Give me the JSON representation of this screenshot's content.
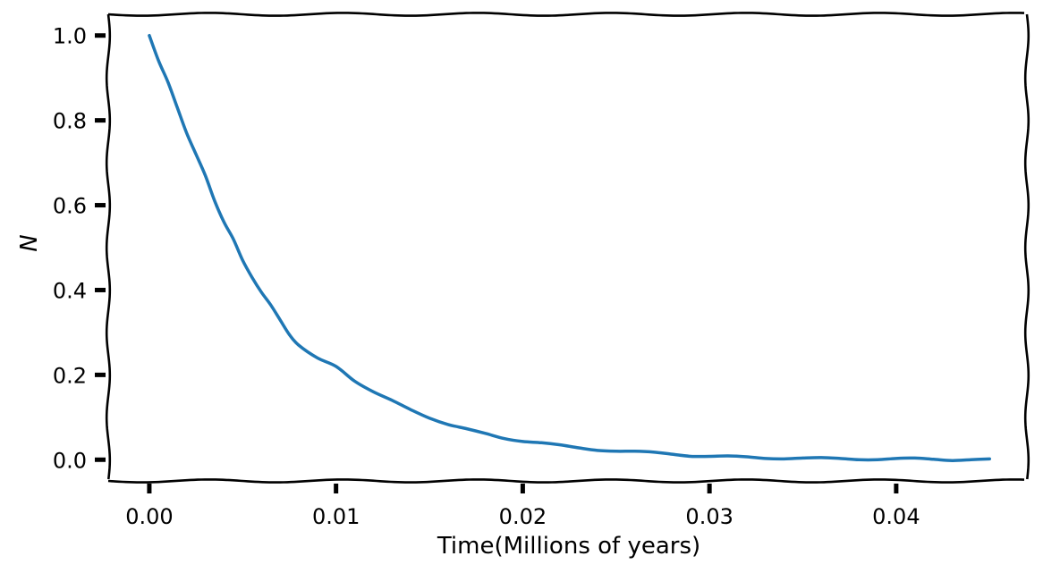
{
  "chart_data": {
    "type": "line",
    "title": "",
    "xlabel": "Time(Millions of years)",
    "ylabel": "N",
    "xlim": [
      -0.0022,
      0.047
    ],
    "ylim": [
      -0.05,
      1.05
    ],
    "xticks": [
      0.0,
      0.01,
      0.02,
      0.03,
      0.04
    ],
    "xtick_labels": [
      "0.00",
      "0.01",
      "0.02",
      "0.03",
      "0.04"
    ],
    "yticks": [
      0.0,
      0.2,
      0.4,
      0.6,
      0.8,
      1.0
    ],
    "ytick_labels": [
      "0.0",
      "0.2",
      "0.4",
      "0.6",
      "0.8",
      "1.0"
    ],
    "grid": false,
    "legend": "none",
    "style": "xkcd",
    "series": [
      {
        "color": "#1f77b4",
        "x": [
          0.0,
          0.0005,
          0.001,
          0.0015,
          0.002,
          0.0025,
          0.003,
          0.0035,
          0.004,
          0.0045,
          0.005,
          0.0055,
          0.006,
          0.0065,
          0.007,
          0.0075,
          0.008,
          0.009,
          0.01,
          0.011,
          0.012,
          0.013,
          0.014,
          0.015,
          0.016,
          0.017,
          0.018,
          0.019,
          0.02,
          0.021,
          0.022,
          0.023,
          0.024,
          0.025,
          0.026,
          0.027,
          0.028,
          0.029,
          0.03,
          0.031,
          0.032,
          0.033,
          0.034,
          0.035,
          0.036,
          0.037,
          0.038,
          0.039,
          0.04,
          0.041,
          0.042,
          0.043,
          0.044,
          0.045
        ],
        "y": [
          1.0,
          0.94,
          0.89,
          0.83,
          0.77,
          0.72,
          0.67,
          0.61,
          0.56,
          0.52,
          0.47,
          0.43,
          0.395,
          0.365,
          0.33,
          0.295,
          0.27,
          0.24,
          0.22,
          0.185,
          0.16,
          0.14,
          0.118,
          0.098,
          0.083,
          0.073,
          0.062,
          0.05,
          0.043,
          0.04,
          0.035,
          0.028,
          0.022,
          0.02,
          0.02,
          0.018,
          0.013,
          0.008,
          0.008,
          0.009,
          0.007,
          0.003,
          0.002,
          0.004,
          0.005,
          0.003,
          0.0,
          0.0,
          0.003,
          0.004,
          0.001,
          -0.002,
          0.0,
          0.002
        ]
      }
    ]
  }
}
